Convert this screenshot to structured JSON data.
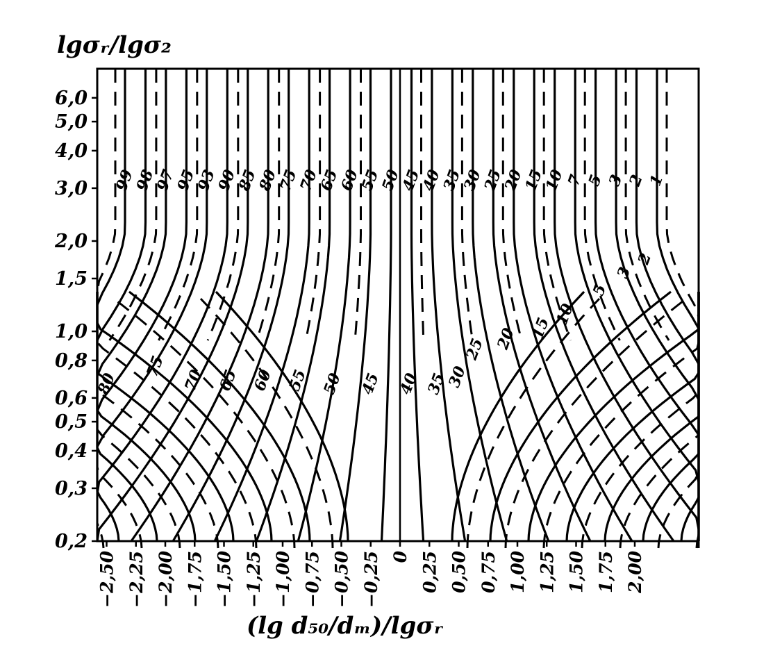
{
  "chart_data": {
    "type": "line",
    "title": "",
    "ylabel": "lgσᵣ/lgσ₂",
    "xlabel": "(lg d₅₀/dₘ)/lgσᵣ",
    "y_scale": "log",
    "ylim": [
      0.2,
      7.5
    ],
    "xlim": [
      -2.5,
      2.5
    ],
    "y_ticks": [
      "6,0",
      "5,0",
      "4,0",
      "3,0",
      "2,0",
      "1,5",
      "1,0",
      "0,8",
      "0,6",
      "0,5",
      "0,4",
      "0,3",
      "0,2"
    ],
    "y_tick_values": [
      6.0,
      5.0,
      4.0,
      3.0,
      2.0,
      1.5,
      1.0,
      0.8,
      0.6,
      0.5,
      0.4,
      0.3,
      0.2
    ],
    "x_ticks": [
      "−2,50",
      "−2,25",
      "−2,00",
      "−1,75",
      "−1,50",
      "−1,25",
      "−1,00",
      "−0,75",
      "−0,50",
      "−0,25",
      "0",
      "0,25",
      "0,50",
      "0,75",
      "1,00",
      "1,25",
      "1,50",
      "1,75",
      "2,00"
    ],
    "x_tick_values": [
      -2.5,
      -2.25,
      -2.0,
      -1.75,
      -1.5,
      -1.25,
      -1.0,
      -0.75,
      -0.5,
      -0.25,
      0,
      0.25,
      0.5,
      0.75,
      1.0,
      1.25,
      1.5,
      1.75,
      2.0
    ],
    "series": [
      {
        "style": "solid",
        "contour_values": [
          "99",
          "98",
          "97",
          "95",
          "93",
          "90",
          "85",
          "80",
          "75",
          "70",
          "65",
          "60",
          "55",
          "50",
          "45",
          "40",
          "35",
          "30",
          "25",
          "20",
          "15",
          "10",
          "7",
          "5",
          "3",
          "2",
          "1"
        ]
      },
      {
        "style": "dashed",
        "contour_values": [
          "80",
          "75",
          "70",
          "65",
          "60",
          "55",
          "50",
          "45",
          "40",
          "35",
          "30",
          "25",
          "20",
          "15",
          "10",
          "5",
          "3",
          "2",
          "1"
        ]
      }
    ],
    "upper_labels": [
      "99",
      "98",
      "97",
      "95",
      "93",
      "90",
      "85",
      "80",
      "75",
      "70",
      "65",
      "60",
      "55",
      "50",
      "45",
      "40",
      "35",
      "30",
      "25",
      "20",
      "15",
      "10",
      "7",
      "5",
      "3",
      "2",
      "1"
    ],
    "lower_labels": [
      "80",
      "75",
      "70",
      "65",
      "60",
      "55",
      "50",
      "45",
      "40",
      "35",
      "30",
      "25",
      "20",
      "15",
      "10",
      "5",
      "3",
      "2"
    ],
    "grid": false,
    "legend": "none"
  }
}
